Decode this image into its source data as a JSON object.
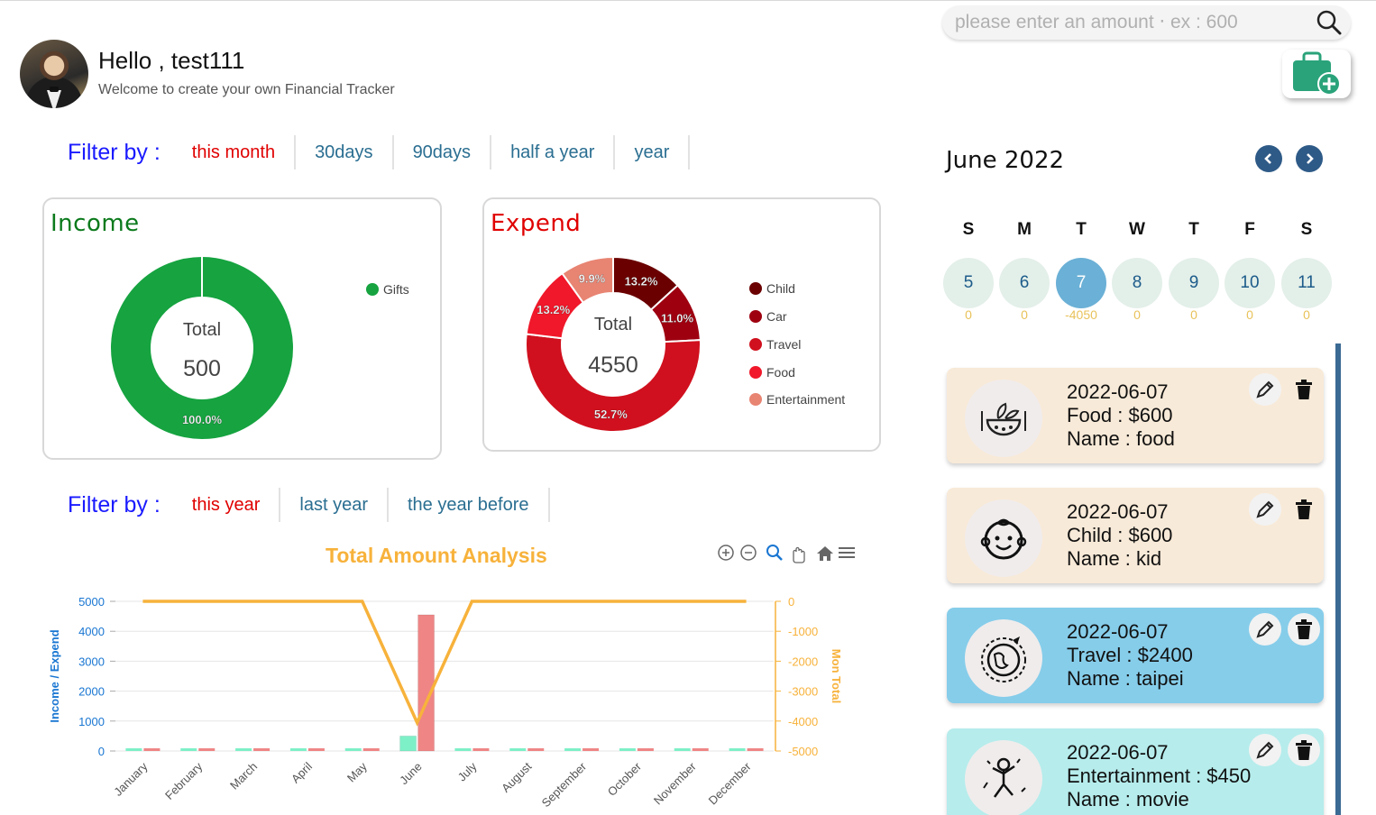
{
  "header": {
    "greeting": "Hello , test111",
    "subtitle": "Welcome to create your own Financial Tracker"
  },
  "search": {
    "placeholder": "please enter an amount ‧ ex : 600",
    "icon": "search-icon"
  },
  "add_button": {
    "icon": "wallet-plus-icon",
    "color": "#2aa37a"
  },
  "filter_top": {
    "label": "Filter by :",
    "options": [
      "this month",
      "30days",
      "90days",
      "half a year",
      "year"
    ],
    "active": "this month"
  },
  "income_card": {
    "title": "Income",
    "total_label": "Total",
    "total_value": "500",
    "legend": [
      {
        "name": "Gifts",
        "color": "#16a340"
      }
    ],
    "slices": [
      {
        "name": "Gifts",
        "percent": 100.0,
        "label": "100.0%",
        "color": "#16a340"
      }
    ]
  },
  "expend_card": {
    "title": "Expend",
    "total_label": "Total",
    "total_value": "4550",
    "legend": [
      {
        "name": "Child",
        "color": "#6b0000"
      },
      {
        "name": "Car",
        "color": "#9e0010"
      },
      {
        "name": "Travel",
        "color": "#d0101e"
      },
      {
        "name": "Food",
        "color": "#f0182a"
      },
      {
        "name": "Entertainment",
        "color": "#e88472"
      }
    ],
    "slices": [
      {
        "name": "Child",
        "percent": 13.2,
        "label": "13.2%",
        "color": "#6b0000"
      },
      {
        "name": "Car",
        "percent": 11.0,
        "label": "11.0%",
        "color": "#9e0010"
      },
      {
        "name": "Travel",
        "percent": 52.7,
        "label": "52.7%",
        "color": "#d0101e"
      },
      {
        "name": "Food",
        "percent": 13.2,
        "label": "13.2%",
        "color": "#f0182a"
      },
      {
        "name": "Entertainment",
        "percent": 9.9,
        "label": "9.9%",
        "color": "#e88472"
      }
    ]
  },
  "filter_bottom": {
    "label": "Filter by :",
    "options": [
      "this year",
      "last year",
      "the year before"
    ],
    "active": "this year"
  },
  "chart_toolbar": [
    "zoom-in-icon",
    "zoom-out-icon",
    "zoom-select-icon",
    "pan-hand-icon",
    "home-icon",
    "menu-icon"
  ],
  "chart_data": {
    "type": "bar",
    "title": "Total Amount Analysis",
    "ylabel": "Income / Expend",
    "y2label": "Mon Total",
    "categories": [
      "January",
      "February",
      "March",
      "April",
      "May",
      "June",
      "July",
      "August",
      "September",
      "October",
      "November",
      "December"
    ],
    "ylim": [
      0,
      5000
    ],
    "y2lim": [
      -5000,
      0
    ],
    "yticks": [
      "0",
      "1000",
      "2000",
      "3000",
      "4000",
      "5000"
    ],
    "y2ticks": [
      "-5000",
      "-4000",
      "-3000",
      "-2000",
      "-1000",
      "0"
    ],
    "series": [
      {
        "kind": "bar",
        "color": "#7ef0c8",
        "values": [
          0,
          0,
          0,
          0,
          0,
          500,
          0,
          0,
          0,
          0,
          0,
          0
        ]
      },
      {
        "kind": "bar",
        "color": "#ef8585",
        "values": [
          0,
          0,
          0,
          0,
          0,
          4550,
          0,
          0,
          0,
          0,
          0,
          0
        ]
      },
      {
        "kind": "line",
        "axis": "right",
        "color": "#f7b23b",
        "values": [
          0,
          0,
          0,
          0,
          0,
          -4050,
          0,
          0,
          0,
          0,
          0,
          0
        ]
      }
    ],
    "grid": true
  },
  "calendar": {
    "title": "June 2022",
    "prev_icon": "chevron-left-icon",
    "next_icon": "chevron-right-icon",
    "weekdays": [
      "S",
      "M",
      "T",
      "W",
      "T",
      "F",
      "S"
    ],
    "days": [
      {
        "day": "5",
        "amount": "0"
      },
      {
        "day": "6",
        "amount": "0"
      },
      {
        "day": "7",
        "amount": "-4050",
        "selected": true
      },
      {
        "day": "8",
        "amount": "0"
      },
      {
        "day": "9",
        "amount": "0"
      },
      {
        "day": "10",
        "amount": "0"
      },
      {
        "day": "11",
        "amount": "0"
      }
    ]
  },
  "entries": [
    {
      "date": "2022-06-07",
      "category": "Food : $600",
      "name": "Name : food",
      "icon": "food-bowl-icon",
      "bg": "#f8ead8"
    },
    {
      "date": "2022-06-07",
      "category": "Child : $600",
      "name": "Name : kid",
      "icon": "baby-face-icon",
      "bg": "#f8ead8"
    },
    {
      "date": "2022-06-07",
      "category": "Travel : $2400",
      "name": "Name : taipei",
      "icon": "globe-plane-icon",
      "bg": "#86cdea"
    },
    {
      "date": "2022-06-07",
      "category": "Entertainment : $450",
      "name": "Name : movie",
      "icon": "dancer-icon",
      "bg": "#b6ecec"
    }
  ]
}
